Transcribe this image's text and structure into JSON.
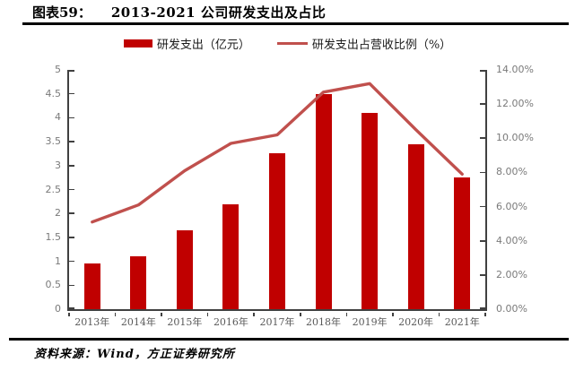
{
  "figure": {
    "number": "图表59：",
    "title": "2013-2021 公司研发支出及占比",
    "source": "资料来源：Wind，方正证券研究所"
  },
  "legend": {
    "items": [
      {
        "icon": "bar-swatch",
        "label": "研发支出（亿元）"
      },
      {
        "icon": "line-swatch",
        "label": "研发支出占营收比例（%）"
      }
    ]
  },
  "colors": {
    "bar": "#c00000",
    "line": "#c0504d",
    "axis": "#404040",
    "tick_label": "#7a7a7a",
    "x_label": "#595959",
    "rule": "#000000"
  },
  "chart_data": {
    "type": "bar+line",
    "title": "2013-2021 公司研发支出及占比",
    "categories": [
      "2013年",
      "2014年",
      "2015年",
      "2016年",
      "2017年",
      "2018年",
      "2019年",
      "2020年",
      "2021年"
    ],
    "series": [
      {
        "name": "研发支出（亿元）",
        "type": "bar",
        "axis": "left",
        "values": [
          0.95,
          1.1,
          1.65,
          2.2,
          3.25,
          4.5,
          4.1,
          3.45,
          2.75
        ]
      },
      {
        "name": "研发支出占营收比例（%）",
        "type": "line",
        "axis": "right",
        "values": [
          5.1,
          6.1,
          8.1,
          9.7,
          10.2,
          12.7,
          13.2,
          10.5,
          7.9
        ]
      }
    ],
    "left_axis": {
      "min": 0,
      "max": 5,
      "step": 0.5,
      "tick_labels": [
        "0",
        "0.5",
        "1",
        "1.5",
        "2",
        "2.5",
        "3",
        "3.5",
        "4",
        "4.5",
        "5"
      ]
    },
    "right_axis": {
      "min": 0,
      "max": 14,
      "step": 2,
      "tick_labels": [
        "0.00%",
        "2.00%",
        "4.00%",
        "6.00%",
        "8.00%",
        "10.00%",
        "12.00%",
        "14.00%"
      ]
    },
    "grid": false,
    "legend_position": "top"
  }
}
